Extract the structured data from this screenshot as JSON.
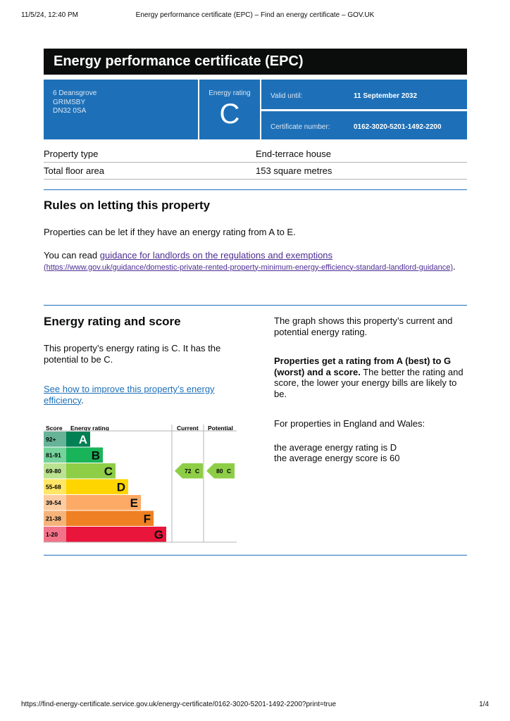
{
  "browser_header": {
    "date": "11/5/24, 12:40 PM",
    "title": "Energy performance certificate (EPC) – Find an energy certificate – GOV.UK"
  },
  "footer": {
    "url": "https://find-energy-certificate.service.gov.uk/energy-certificate/0162-3020-5201-1492-2200?print=true",
    "page": "1/4"
  },
  "title": "Energy performance certificate (EPC)",
  "summary": {
    "address": [
      "6 Deansgrove",
      "GRIMSBY",
      "DN32 0SA"
    ],
    "rating_label": "Energy rating",
    "rating": "C",
    "valid_until_label": "Valid until:",
    "valid_until": "11 September 2032",
    "certificate_number_label": "Certificate number:",
    "certificate_number": "0162-3020-5201-1492-2200"
  },
  "property": {
    "rows": [
      [
        "Property type",
        "End-terrace house"
      ],
      [
        "Total floor area",
        "153 square metres"
      ]
    ]
  },
  "letting": {
    "heading": "Rules on letting this property",
    "paragraph": "Properties can be let if they have an energy rating from A to E.",
    "read_prefix": "You can read ",
    "link_text": "guidance for landlords on the regulations and exemptions",
    "link_url": "(https://www.gov.uk/guidance/domestic-private-rented-property-minimum-energy-efficiency-standard-landlord-guidance)",
    "read_suffix": "."
  },
  "rating": {
    "heading": "Energy rating and score",
    "paragraph": "This property’s energy rating is C. It has the potential to be C.",
    "link_text": "See how to improve this property’s energy efficiency",
    "link_suffix": ".",
    "graph_intro": "The graph shows this property’s current and potential energy rating.",
    "bold_text": "Properties get a rating from A (best) to G (worst) and a score.",
    "explain": " The better the rating and score, the lower your energy bills are likely to be.",
    "region": "For properties in England and Wales:",
    "average_rating": "the average energy rating is D",
    "average_score": "the average energy score is 60"
  },
  "graph": {
    "headers": [
      "Score",
      "Energy rating",
      "Current",
      "Potential"
    ],
    "bands": [
      {
        "score": "92+",
        "letter": "A",
        "color": "#008054",
        "light": "#66b398"
      },
      {
        "score": "81-91",
        "letter": "B",
        "color": "#19b459",
        "light": "#75d29b"
      },
      {
        "score": "69-80",
        "letter": "C",
        "color": "#8dce46",
        "light": "#bbe290"
      },
      {
        "score": "55-68",
        "letter": "D",
        "color": "#ffd500",
        "light": "#ffe666"
      },
      {
        "score": "39-54",
        "letter": "E",
        "color": "#fcaa65",
        "light": "#fdcca3"
      },
      {
        "score": "21-38",
        "letter": "F",
        "color": "#ef8023",
        "light": "#f5b37b"
      },
      {
        "score": "1-20",
        "letter": "G",
        "color": "#e9153b",
        "light": "#f27389"
      }
    ],
    "current": {
      "score": 72,
      "letter": "C"
    },
    "potential": {
      "score": 80,
      "letter": "C"
    }
  }
}
